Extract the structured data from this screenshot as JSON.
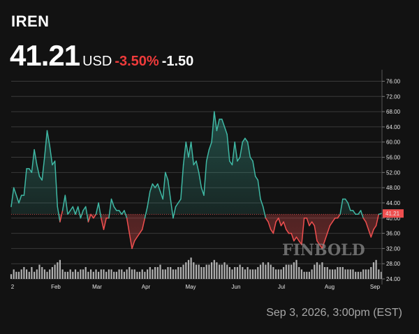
{
  "header": {
    "ticker": "IREN",
    "price": "41.21",
    "currency": "USD",
    "change_pct": "-3.50%",
    "change_abs": "-1.50"
  },
  "footer": {
    "timestamp": "Sep 3, 2026, 3:00pm (EST)"
  },
  "watermark": "FINBOLD",
  "colors": {
    "up": "#3fb8a4",
    "down": "#ef4f4f",
    "background": "#121212",
    "grid": "#3a3a3a",
    "volume": "#cfcfcf"
  },
  "chart_data": {
    "type": "line",
    "title": "",
    "xlabel": "",
    "ylabel": "",
    "ylim": [
      24,
      78
    ],
    "y_ticks": [
      "76.00",
      "72.00",
      "68.00",
      "64.00",
      "60.00",
      "56.00",
      "52.00",
      "48.00",
      "44.00",
      "40.00",
      "36.00",
      "32.00",
      "28.00",
      "24.00"
    ],
    "x_ticks": [
      "2",
      "Feb",
      "Mar",
      "Apr",
      "May",
      "Jun",
      "Jul",
      "Aug",
      "Sep"
    ],
    "last_price_label": "41.21",
    "reference_price": 41.0,
    "grid": true,
    "series": [
      {
        "values": [
          43,
          48,
          46,
          44,
          46,
          46,
          53,
          53,
          52,
          58,
          54,
          51,
          50,
          56,
          63,
          59,
          54,
          55,
          43,
          39,
          42,
          46,
          41,
          42,
          43,
          41,
          43,
          40,
          42,
          43,
          39,
          41,
          40,
          41,
          44,
          40,
          37,
          40,
          40,
          45,
          43,
          42,
          42,
          41,
          42,
          40,
          36,
          32,
          34,
          35,
          36,
          37,
          40,
          43,
          47,
          49,
          48,
          49,
          47,
          45,
          52,
          50,
          45,
          40,
          43,
          44,
          45,
          54,
          60,
          56,
          60,
          54,
          55,
          52,
          48,
          46,
          55,
          58,
          60,
          68,
          63,
          66,
          66,
          64,
          62,
          55,
          54,
          60,
          55,
          56,
          60,
          61,
          60,
          56,
          55,
          51,
          50,
          45,
          43,
          40,
          39,
          37,
          36,
          39,
          40,
          38,
          39,
          37,
          36,
          36,
          34,
          35,
          34,
          33,
          40,
          40,
          38,
          39,
          38,
          34,
          33,
          32,
          34,
          36,
          38,
          39,
          40,
          40,
          41,
          45,
          45,
          44,
          42,
          42,
          41,
          41,
          42,
          40,
          39,
          37,
          35,
          37,
          38,
          41,
          41.21
        ]
      }
    ],
    "volume": [
      2,
      4,
      3,
      3,
      4,
      5,
      4,
      3,
      5,
      3,
      4,
      6,
      5,
      4,
      3,
      4,
      5,
      6,
      7,
      8,
      4,
      3,
      3,
      4,
      3,
      4,
      3,
      4,
      4,
      5,
      3,
      4,
      3,
      4,
      3,
      4,
      4,
      3,
      4,
      4,
      3,
      3,
      4,
      4,
      3,
      4,
      5,
      4,
      4,
      3,
      3,
      4,
      3,
      4,
      5,
      4,
      5,
      5,
      6,
      4,
      4,
      5,
      5,
      4,
      4,
      5,
      5,
      6,
      7,
      8,
      9,
      7,
      6,
      6,
      5,
      5,
      6,
      6,
      7,
      8,
      7,
      6,
      6,
      7,
      6,
      5,
      4,
      5,
      5,
      6,
      5,
      4,
      5,
      4,
      4,
      4,
      5,
      6,
      7,
      6,
      7,
      6,
      5,
      4,
      4,
      4,
      5,
      6,
      6,
      6,
      7,
      8,
      5,
      4,
      3,
      3,
      3,
      4,
      6,
      7,
      6,
      7,
      5,
      5,
      4,
      4,
      4,
      5,
      5,
      5,
      4,
      4,
      4,
      4,
      3,
      3,
      3,
      4,
      4,
      4,
      5,
      7,
      8,
      4,
      3
    ]
  }
}
